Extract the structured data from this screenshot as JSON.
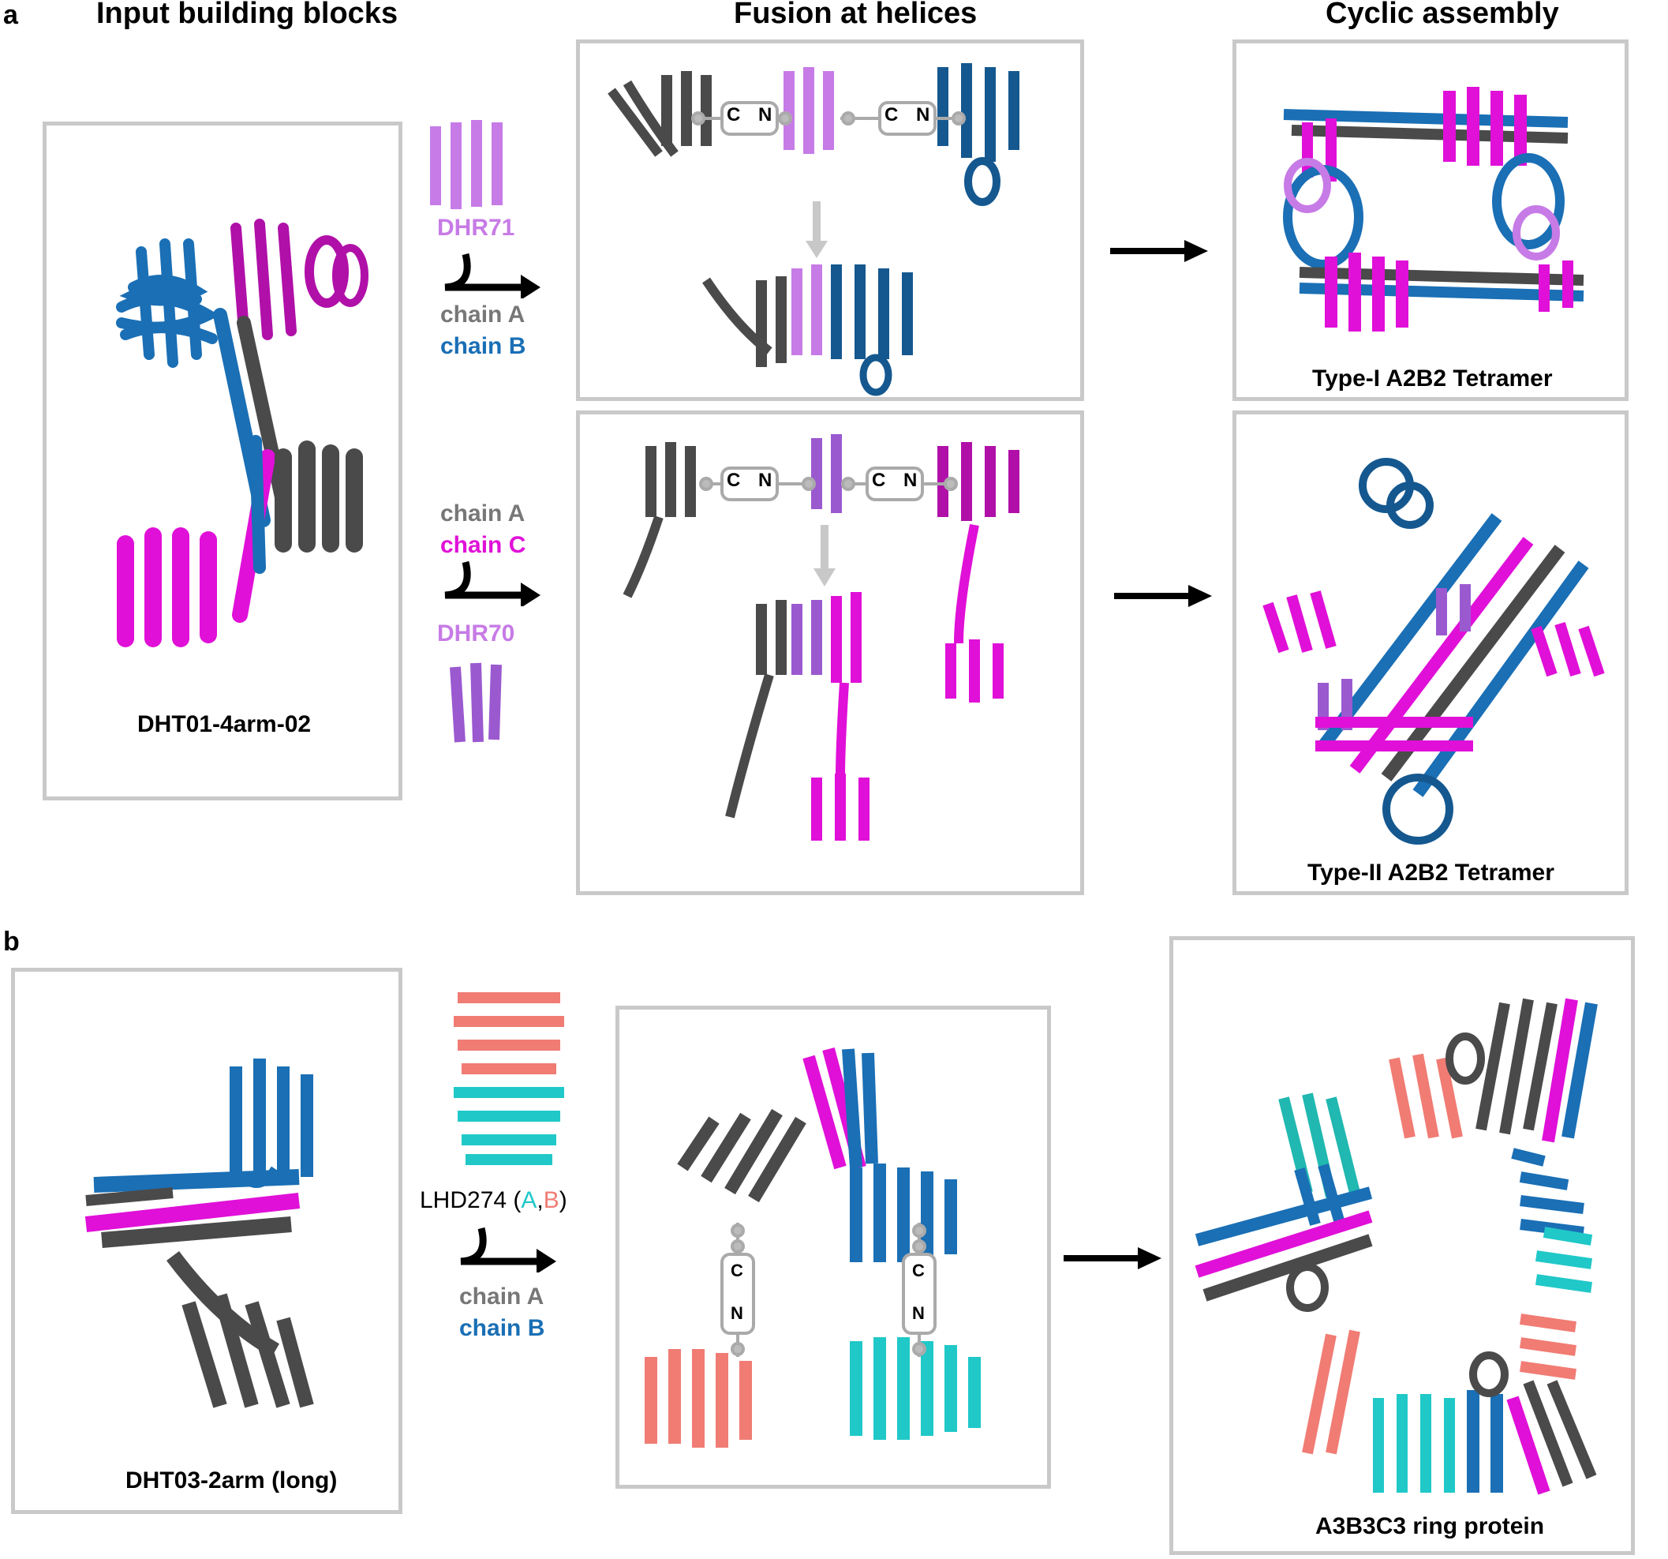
{
  "panels": {
    "a": {
      "letter": "a",
      "headers": {
        "input": "Input building blocks",
        "fusion": "Fusion at helices",
        "cyclic": "Cyclic assembly"
      },
      "input_caption": "DHT01-4arm-02",
      "row1": {
        "dhr_label": "DHR71",
        "chain1": "chain A",
        "chain2": "chain B",
        "connector1": "C",
        "connector1b": "N",
        "connector2": "C",
        "connector2b": "N",
        "assembly_caption": "Type-I A2B2 Tetramer"
      },
      "row2": {
        "chain1": "chain A",
        "chain2": "chain C",
        "dhr_label": "DHR70",
        "connector1": "C",
        "connector1b": "N",
        "connector2": "C",
        "connector2b": "N",
        "assembly_caption": "Type-II A2B2 Tetramer"
      }
    },
    "b": {
      "letter": "b",
      "input_caption": "DHT03-2arm (long)",
      "lhd_prefix": "LHD274 (",
      "lhd_a": "A",
      "lhd_sep": ",",
      "lhd_b": "B",
      "lhd_suffix": ")",
      "chain1": "chain A",
      "chain2": "chain B",
      "connector_c": "C",
      "connector_n": "N",
      "assembly_caption": "A3B3C3 ring protein"
    }
  },
  "colors": {
    "chain_a": "#4a4a4a",
    "chain_b": "#1a6fb5",
    "chain_c": "#e010d8",
    "dhr71": "#c77be6",
    "dhr70": "#9b59d0",
    "lhd_a": "#20c8c8",
    "lhd_b": "#f07c74",
    "box_border": "#c9c9c9",
    "arrow_gray": "#c8c8c8",
    "label_gray": "#777777"
  }
}
